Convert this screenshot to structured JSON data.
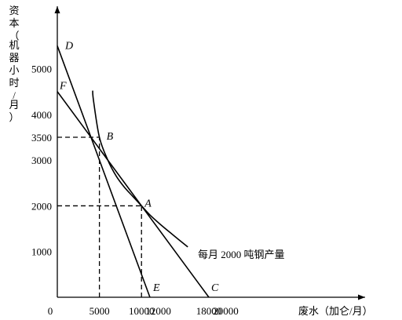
{
  "chart_data": {
    "type": "line",
    "title": "",
    "xlabel": "废水（加仑/月）",
    "ylabel": "资本（机器小时/月）",
    "xlim": [
      0,
      24000
    ],
    "ylim": [
      0,
      5900
    ],
    "x_ticks": [
      {
        "value": 0,
        "label": "0"
      },
      {
        "value": 5000,
        "label": "5000"
      },
      {
        "value": 10000,
        "label": "10000"
      },
      {
        "value": 12000,
        "label": "12000"
      },
      {
        "value": 18000,
        "label": "18000"
      },
      {
        "value": 20000,
        "label": "20000"
      }
    ],
    "y_ticks": [
      {
        "value": 1000,
        "label": "1000"
      },
      {
        "value": 2000,
        "label": "2000"
      },
      {
        "value": 3000,
        "label": "3000"
      },
      {
        "value": 3500,
        "label": "3500"
      },
      {
        "value": 4000,
        "label": "4000"
      },
      {
        "value": 5000,
        "label": "5000"
      }
    ],
    "lines": [
      {
        "name": "DE",
        "points": [
          [
            0,
            5500
          ],
          [
            11000,
            0
          ]
        ],
        "labels": [
          "D",
          "E"
        ]
      },
      {
        "name": "FC",
        "points": [
          [
            0,
            4500
          ],
          [
            18000,
            0
          ]
        ],
        "labels": [
          "F",
          "C"
        ]
      }
    ],
    "isoquant": {
      "label": "每月 2000 吨钢产量",
      "points": [
        [
          4200,
          4520
        ],
        [
          4300,
          4300
        ],
        [
          5000,
          3500
        ],
        [
          6000,
          3000
        ],
        [
          7000,
          2650
        ],
        [
          8000,
          2400
        ],
        [
          9000,
          2200
        ],
        [
          10000,
          2000
        ],
        [
          11000,
          1800
        ],
        [
          12200,
          1600
        ],
        [
          13500,
          1400
        ],
        [
          15500,
          1100
        ]
      ]
    },
    "points": [
      {
        "name": "A",
        "x": 10000,
        "y": 2000
      },
      {
        "name": "B",
        "x": 5000,
        "y": 3500
      }
    ],
    "reference_lines": [
      {
        "from": [
          0,
          3500
        ],
        "to": [
          5000,
          3500
        ],
        "style": "dashed"
      },
      {
        "from": [
          5000,
          0
        ],
        "to": [
          5000,
          3500
        ],
        "style": "dashed"
      },
      {
        "from": [
          0,
          2000
        ],
        "to": [
          10000,
          2000
        ],
        "style": "dashed"
      },
      {
        "from": [
          10000,
          0
        ],
        "to": [
          10000,
          2000
        ],
        "style": "dashed"
      }
    ]
  }
}
